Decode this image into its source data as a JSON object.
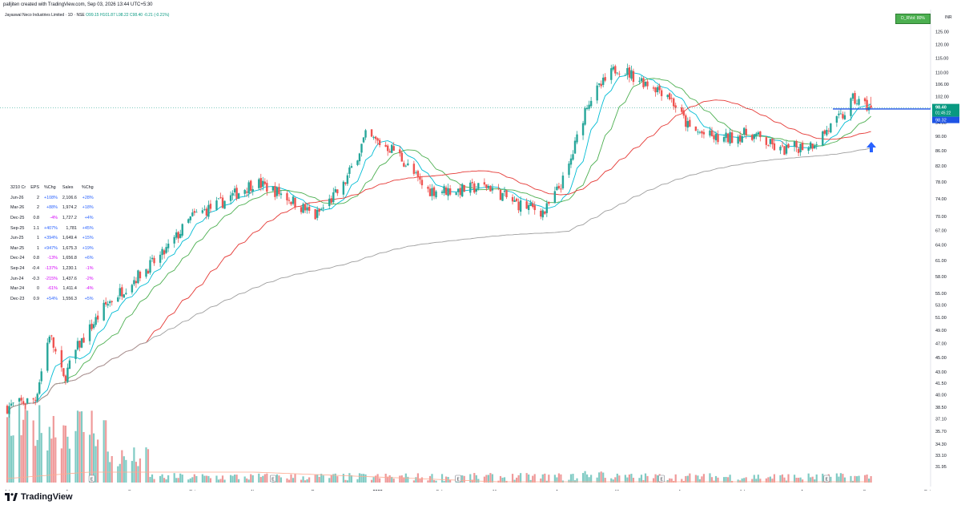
{
  "header": {
    "credit": "palljiten created with TradingView.com, Sep 03, 2026 13:44 UTC+5:30"
  },
  "legend": {
    "symbol": "Jayaswal Neco Industries Limited · 1D · NSE",
    "ohlc": "O99.15 H101.87 L98.22 C98.40",
    "change": "-0.21 (-0.21%)"
  },
  "indicator_badge": "D_RVol: 80%",
  "currency": "INR",
  "price_tags": {
    "last": "98.40",
    "countdown": "01:45:22",
    "level": "98.32"
  },
  "fundamentals": {
    "headers": [
      "3210 Cr",
      "EPS",
      "%Chg",
      "Sales",
      "%Chg"
    ],
    "rows": [
      {
        "q": "Jun-26",
        "eps": "2",
        "eps_chg": "+108%",
        "sales": "2,106.6",
        "sales_chg": "+28%"
      },
      {
        "q": "Mar-26",
        "eps": "2",
        "eps_chg": "+88%",
        "sales": "1,974.2",
        "sales_chg": "+18%"
      },
      {
        "q": "Dec-25",
        "eps": "0.8",
        "eps_chg": "-4%",
        "sales": "1,727.2",
        "sales_chg": "+4%"
      },
      {
        "q": "Sep-25",
        "eps": "1.1",
        "eps_chg": "+407%",
        "sales": "1,781",
        "sales_chg": "+45%"
      },
      {
        "q": "Jun-25",
        "eps": "1",
        "eps_chg": "+394%",
        "sales": "1,649.4",
        "sales_chg": "+15%"
      },
      {
        "q": "Mar-25",
        "eps": "1",
        "eps_chg": "+947%",
        "sales": "1,675.3",
        "sales_chg": "+19%"
      },
      {
        "q": "Dec-24",
        "eps": "0.8",
        "eps_chg": "-13%",
        "sales": "1,656.8",
        "sales_chg": "+6%"
      },
      {
        "q": "Sep-24",
        "eps": "-0.4",
        "eps_chg": "-137%",
        "sales": "1,230.1",
        "sales_chg": "-1%"
      },
      {
        "q": "Jun-24",
        "eps": "-0.3",
        "eps_chg": "-215%",
        "sales": "1,437.6",
        "sales_chg": "-2%"
      },
      {
        "q": "Mar-24",
        "eps": "0",
        "eps_chg": "-61%",
        "sales": "1,411.4",
        "sales_chg": "-4%"
      },
      {
        "q": "Dec-23",
        "eps": "0.9",
        "eps_chg": "+54%",
        "sales": "1,556.3",
        "sales_chg": "+5%"
      }
    ]
  },
  "colors": {
    "up": "#26a69a",
    "down": "#ef5350",
    "ma_fast": "#00bcd4",
    "ma_mid": "#4caf50",
    "ma_slow": "#e53935",
    "ma_long": "#9e9e9e",
    "level_line": "#1e53e5",
    "last_price": "#089981",
    "arrow": "#2962ff"
  },
  "chart_data": {
    "type": "candlestick",
    "scale": "log",
    "ylim": [
      31.0,
      128.0
    ],
    "y_ticks": [
      "125.00",
      "120.00",
      "115.00",
      "110.00",
      "106.00",
      "102.00",
      "98.00",
      "94.00",
      "90.00",
      "86.00",
      "82.00",
      "78.00",
      "74.00",
      "70.00",
      "67.00",
      "64.00",
      "61.00",
      "58.00",
      "55.00",
      "53.00",
      "51.00",
      "49.00",
      "47.00",
      "45.00",
      "43.00",
      "41.50",
      "40.00",
      "38.50",
      "37.10",
      "35.70",
      "34.30",
      "33.10",
      "31.95"
    ],
    "x_ticks": [
      "Jul",
      "Aug",
      "Sep",
      "Oct",
      "Nov",
      "Dec",
      "2026",
      "Feb",
      "Mar",
      "Apr",
      "May",
      "Jun",
      "Jul",
      "Aug",
      "Sep",
      "Oct"
    ],
    "earnings_markers": [
      "Aug",
      "Nov",
      "Feb",
      "May",
      "Aug"
    ],
    "key_level": 98.32,
    "last_close": 98.4,
    "price_path": [
      {
        "date": "2025-07-01",
        "close": 38.5
      },
      {
        "date": "2025-07-15",
        "close": 39.5
      },
      {
        "date": "2025-07-22",
        "close": 48.5
      },
      {
        "date": "2025-07-29",
        "close": 42.0
      },
      {
        "date": "2025-08-05",
        "close": 46.5
      },
      {
        "date": "2025-08-19",
        "close": 53.0
      },
      {
        "date": "2025-09-02",
        "close": 57.5
      },
      {
        "date": "2025-09-16",
        "close": 62.0
      },
      {
        "date": "2025-10-01",
        "close": 70.0
      },
      {
        "date": "2025-10-15",
        "close": 73.0
      },
      {
        "date": "2025-11-01",
        "close": 78.0
      },
      {
        "date": "2025-11-15",
        "close": 75.0
      },
      {
        "date": "2025-12-01",
        "close": 70.0
      },
      {
        "date": "2025-12-15",
        "close": 77.0
      },
      {
        "date": "2025-12-26",
        "close": 90.0
      },
      {
        "date": "2026-01-10",
        "close": 86.0
      },
      {
        "date": "2026-01-25",
        "close": 76.0
      },
      {
        "date": "2026-02-10",
        "close": 76.0
      },
      {
        "date": "2026-02-25",
        "close": 77.0
      },
      {
        "date": "2026-03-10",
        "close": 73.0
      },
      {
        "date": "2026-03-25",
        "close": 71.0
      },
      {
        "date": "2026-04-05",
        "close": 80.0
      },
      {
        "date": "2026-04-15",
        "close": 100.0
      },
      {
        "date": "2026-04-30",
        "close": 112.0
      },
      {
        "date": "2026-05-10",
        "close": 108.0
      },
      {
        "date": "2026-05-25",
        "close": 103.0
      },
      {
        "date": "2026-06-05",
        "close": 92.0
      },
      {
        "date": "2026-06-20",
        "close": 89.0
      },
      {
        "date": "2026-07-05",
        "close": 91.0
      },
      {
        "date": "2026-07-20",
        "close": 86.0
      },
      {
        "date": "2026-08-05",
        "close": 88.0
      },
      {
        "date": "2026-08-20",
        "close": 96.0
      },
      {
        "date": "2026-08-25",
        "close": 101.0
      },
      {
        "date": "2026-09-03",
        "close": 98.4
      }
    ]
  }
}
